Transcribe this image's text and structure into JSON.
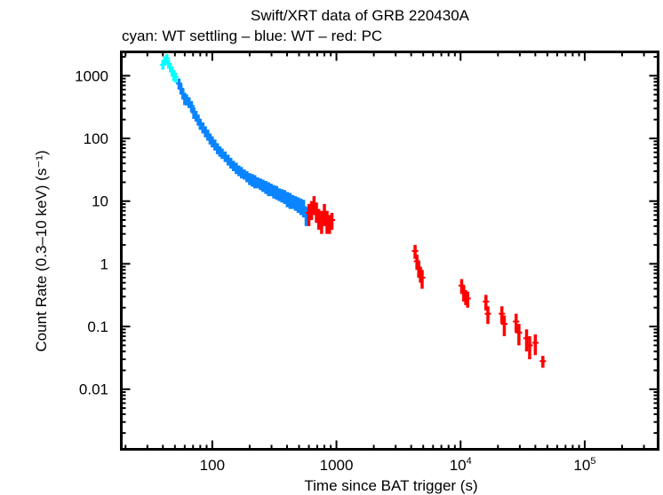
{
  "chart_data": {
    "type": "scatter",
    "title": "Swift/XRT data of GRB 220430A",
    "subtitle": "cyan: WT settling – blue: WT – red: PC",
    "xlabel": "Time since BAT trigger (s)",
    "ylabel": "Count Rate (0.3–10 keV) (s⁻¹)",
    "xscale": "log",
    "yscale": "log",
    "xlim": [
      18.5,
      390000
    ],
    "ylim": [
      0.0011,
      2400
    ],
    "grid": false,
    "legend": "none",
    "x_ticks": [
      {
        "value": 100,
        "label": "100"
      },
      {
        "value": 1000,
        "label": "1000"
      },
      {
        "value": 10000,
        "label": "10",
        "sup": "4"
      },
      {
        "value": 100000,
        "label": "10",
        "sup": "5"
      }
    ],
    "y_ticks": [
      {
        "value": 1000,
        "label": "1000"
      },
      {
        "value": 100,
        "label": "100"
      },
      {
        "value": 10,
        "label": "10"
      },
      {
        "value": 1,
        "label": "1"
      },
      {
        "value": 0.1,
        "label": "0.1"
      },
      {
        "value": 0.01,
        "label": "0.01"
      }
    ],
    "series": [
      {
        "name": "WT settling",
        "color": "#00ffff",
        "points": [
          [
            40,
            1500,
            250
          ],
          [
            41.5,
            1750,
            280
          ],
          [
            43,
            1900,
            300
          ],
          [
            44.5,
            1550,
            250
          ],
          [
            46,
            1350,
            220
          ],
          [
            47.5,
            1200,
            200
          ],
          [
            49,
            1000,
            180
          ],
          [
            50.5,
            950,
            170
          ]
        ]
      },
      {
        "name": "WT",
        "color": "#0a84ff",
        "points": [
          [
            54,
            750,
            150
          ],
          [
            56,
            620,
            120
          ],
          [
            58,
            520,
            100
          ],
          [
            60,
            430,
            90
          ],
          [
            62,
            420,
            85
          ],
          [
            65,
            380,
            75
          ],
          [
            68,
            330,
            65
          ],
          [
            71,
            260,
            55
          ],
          [
            74,
            230,
            45
          ],
          [
            77,
            200,
            40
          ],
          [
            80,
            170,
            33
          ],
          [
            84,
            150,
            30
          ],
          [
            88,
            130,
            26
          ],
          [
            92,
            115,
            23
          ],
          [
            96,
            100,
            20
          ],
          [
            100,
            90,
            18
          ],
          [
            105,
            80,
            16
          ],
          [
            110,
            70,
            14
          ],
          [
            115,
            63,
            12
          ],
          [
            120,
            58,
            11
          ],
          [
            127,
            52,
            10
          ],
          [
            134,
            46,
            9
          ],
          [
            141,
            41,
            8
          ],
          [
            148,
            37,
            7
          ],
          [
            156,
            34,
            7
          ],
          [
            164,
            31,
            6
          ],
          [
            172,
            29,
            6
          ],
          [
            181,
            27,
            5
          ],
          [
            190,
            25,
            5
          ],
          [
            200,
            23,
            5
          ],
          [
            210,
            22,
            5
          ],
          [
            220,
            21,
            5
          ],
          [
            232,
            20,
            4
          ],
          [
            244,
            19,
            4
          ],
          [
            256,
            18,
            4
          ],
          [
            270,
            17,
            4
          ],
          [
            284,
            16,
            4
          ],
          [
            298,
            15.5,
            3.5
          ],
          [
            313,
            14.5,
            3.5
          ],
          [
            330,
            14,
            3.5
          ],
          [
            346,
            13,
            3
          ],
          [
            364,
            12.5,
            3
          ],
          [
            383,
            12,
            3
          ],
          [
            402,
            11,
            3
          ],
          [
            423,
            10.5,
            3
          ],
          [
            445,
            10,
            2.5
          ],
          [
            468,
            9.5,
            2.5
          ],
          [
            492,
            9,
            2.5
          ],
          [
            517,
            8.5,
            2.5
          ],
          [
            544,
            8,
            2.5
          ],
          [
            570,
            6,
            2
          ]
        ]
      },
      {
        "name": "PC",
        "color": "#ff0000",
        "points": [
          [
            600,
            6.5,
            2.5
          ],
          [
            630,
            7.5,
            2.5
          ],
          [
            660,
            9,
            3
          ],
          [
            690,
            7,
            2.5
          ],
          [
            720,
            5.5,
            2
          ],
          [
            760,
            5,
            2
          ],
          [
            800,
            6.5,
            2.5
          ],
          [
            840,
            5,
            2
          ],
          [
            880,
            4.5,
            1.5
          ],
          [
            920,
            5,
            1.5
          ],
          [
            4300,
            1.6,
            0.4
          ],
          [
            4450,
            1.1,
            0.3
          ],
          [
            4600,
            0.85,
            0.25
          ],
          [
            4750,
            0.7,
            0.2
          ],
          [
            4900,
            0.6,
            0.2
          ],
          [
            10200,
            0.45,
            0.12
          ],
          [
            10600,
            0.35,
            0.1
          ],
          [
            11000,
            0.3,
            0.08
          ],
          [
            11400,
            0.28,
            0.08
          ],
          [
            16000,
            0.25,
            0.07
          ],
          [
            16600,
            0.16,
            0.05
          ],
          [
            21500,
            0.16,
            0.05
          ],
          [
            22500,
            0.11,
            0.04
          ],
          [
            28000,
            0.12,
            0.04
          ],
          [
            29500,
            0.08,
            0.03
          ],
          [
            34000,
            0.065,
            0.025
          ],
          [
            36000,
            0.05,
            0.02
          ],
          [
            40000,
            0.055,
            0.02
          ],
          [
            46000,
            0.028,
            0.006
          ]
        ]
      }
    ]
  }
}
